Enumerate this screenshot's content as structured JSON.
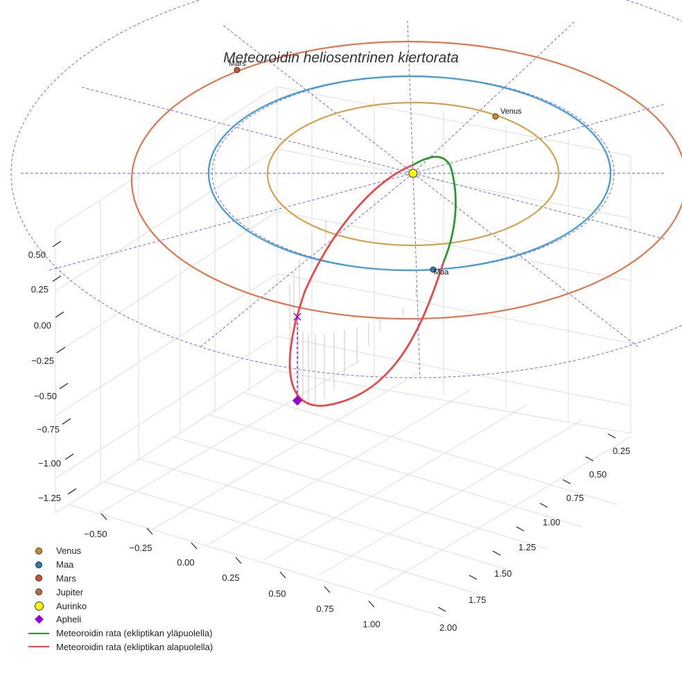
{
  "chart_data": {
    "type": "line3d",
    "title": "Meteoroidin heliosentrinen kiertorata",
    "axes": {
      "x": {
        "range": [
          -0.7,
          1.2
        ],
        "ticks": [
          "−0.50",
          "−0.25",
          "0.00",
          "0.25",
          "0.50",
          "0.75",
          "1.00"
        ]
      },
      "y": {
        "range": [
          0.1,
          2.1
        ],
        "ticks": [
          "0.25",
          "0.50",
          "0.75",
          "1.00",
          "1.25",
          "1.50",
          "1.75",
          "2.00"
        ]
      },
      "z": {
        "range": [
          -1.3,
          0.6
        ],
        "ticks": [
          "0.50",
          "0.25",
          "0.00",
          "−0.25",
          "−0.50",
          "−0.75",
          "−1.00",
          "−1.25"
        ]
      }
    },
    "grid": true,
    "orbits": [
      {
        "name": "Venus",
        "radius_au": 0.72,
        "color": "#d4a24c"
      },
      {
        "name": "Maa",
        "radius_au": 1.0,
        "color": "#4a9fd0"
      },
      {
        "name": "Mars",
        "radius_au": 1.52,
        "color": "#e07550"
      }
    ],
    "planet_labels": [
      "Venus",
      "Maa",
      "Mars"
    ],
    "meteoroid": {
      "segments": [
        {
          "name": "Meteoroidin rata (ekliptikan yläpuolella)",
          "color": "#2a9a2a"
        },
        {
          "name": "Meteoroidin rata (ekliptikan alapuolella)",
          "color": "#e84848"
        }
      ],
      "aphelion_z_au": -0.55
    }
  },
  "legend": [
    {
      "label": "Venus",
      "marker": "dot",
      "color": "#d08a2a"
    },
    {
      "label": "Maa",
      "marker": "dot",
      "color": "#2a7ab8"
    },
    {
      "label": "Mars",
      "marker": "dot",
      "color": "#d4502a"
    },
    {
      "label": "Jupiter",
      "marker": "dot",
      "color": "#b86a3a"
    },
    {
      "label": "Aurinko",
      "marker": "sun",
      "color": "#ffff00"
    },
    {
      "label": "Apheli",
      "marker": "diamond",
      "color": "#9400d3"
    },
    {
      "label": "Meteoroidin rata (ekliptikan yläpuolella)",
      "marker": "line",
      "color": "#2a9a2a"
    },
    {
      "label": "Meteoroidin rata (ekliptikan alapuolella)",
      "marker": "line",
      "color": "#e84848"
    }
  ]
}
